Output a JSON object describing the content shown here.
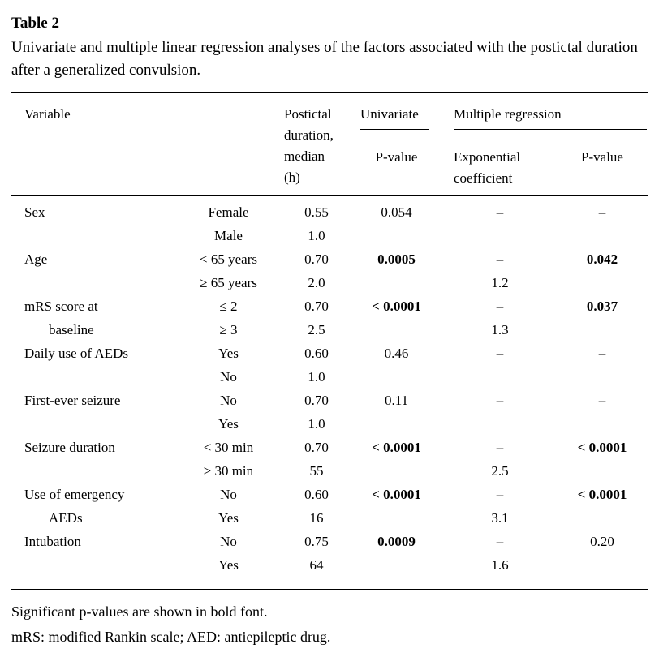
{
  "doc": {
    "title": "Table 2",
    "caption": "Univariate and multiple linear regression analyses of the factors associated with the postictal duration after a generalized convulsion."
  },
  "table": {
    "headers": {
      "variable": "Variable",
      "postictal": "Postictal duration, median (h)",
      "univariate": "Univariate",
      "multiple_regression": "Multiple regression",
      "univariate_p": "P-value",
      "exp_coef": "Exponential coefficient",
      "mr_p": "P-value"
    },
    "rows": [
      {
        "variable": "Sex",
        "indent": false,
        "category": "Female",
        "median": "0.55",
        "uni_p": "0.054",
        "uni_p_bold": false,
        "exp_coef": "–",
        "mr_p": "–",
        "mr_p_bold": false
      },
      {
        "variable": "",
        "indent": false,
        "category": "Male",
        "median": "1.0",
        "uni_p": "",
        "uni_p_bold": false,
        "exp_coef": "",
        "mr_p": "",
        "mr_p_bold": false
      },
      {
        "variable": "Age",
        "indent": false,
        "category": "< 65 years",
        "median": "0.70",
        "uni_p": "0.0005",
        "uni_p_bold": true,
        "exp_coef": "–",
        "mr_p": "0.042",
        "mr_p_bold": true
      },
      {
        "variable": "",
        "indent": false,
        "category": "≥ 65 years",
        "median": "2.0",
        "uni_p": "",
        "uni_p_bold": false,
        "exp_coef": "1.2",
        "mr_p": "",
        "mr_p_bold": false
      },
      {
        "variable": "mRS score at",
        "indent": false,
        "category": "≤ 2",
        "median": "0.70",
        "uni_p": "< 0.0001",
        "uni_p_bold": true,
        "exp_coef": "–",
        "mr_p": "0.037",
        "mr_p_bold": true
      },
      {
        "variable": "baseline",
        "indent": true,
        "category": "≥ 3",
        "median": "2.5",
        "uni_p": "",
        "uni_p_bold": false,
        "exp_coef": "1.3",
        "mr_p": "",
        "mr_p_bold": false
      },
      {
        "variable": "Daily use of AEDs",
        "indent": false,
        "category": "Yes",
        "median": "0.60",
        "uni_p": "0.46",
        "uni_p_bold": false,
        "exp_coef": "–",
        "mr_p": "–",
        "mr_p_bold": false
      },
      {
        "variable": "",
        "indent": false,
        "category": "No",
        "median": "1.0",
        "uni_p": "",
        "uni_p_bold": false,
        "exp_coef": "",
        "mr_p": "",
        "mr_p_bold": false
      },
      {
        "variable": "First-ever seizure",
        "indent": false,
        "category": "No",
        "median": "0.70",
        "uni_p": "0.11",
        "uni_p_bold": false,
        "exp_coef": "–",
        "mr_p": "–",
        "mr_p_bold": false
      },
      {
        "variable": "",
        "indent": false,
        "category": "Yes",
        "median": "1.0",
        "uni_p": "",
        "uni_p_bold": false,
        "exp_coef": "",
        "mr_p": "",
        "mr_p_bold": false
      },
      {
        "variable": "Seizure duration",
        "indent": false,
        "category": "< 30 min",
        "median": "0.70",
        "uni_p": "< 0.0001",
        "uni_p_bold": true,
        "exp_coef": "–",
        "mr_p": "< 0.0001",
        "mr_p_bold": true
      },
      {
        "variable": "",
        "indent": false,
        "category": "≥ 30 min",
        "median": "55",
        "uni_p": "",
        "uni_p_bold": false,
        "exp_coef": "2.5",
        "mr_p": "",
        "mr_p_bold": false
      },
      {
        "variable": "Use of emergency",
        "indent": false,
        "category": "No",
        "median": "0.60",
        "uni_p": "< 0.0001",
        "uni_p_bold": true,
        "exp_coef": "–",
        "mr_p": "< 0.0001",
        "mr_p_bold": true
      },
      {
        "variable": "AEDs",
        "indent": true,
        "category": "Yes",
        "median": "16",
        "uni_p": "",
        "uni_p_bold": false,
        "exp_coef": "3.1",
        "mr_p": "",
        "mr_p_bold": false
      },
      {
        "variable": "Intubation",
        "indent": false,
        "category": "No",
        "median": "0.75",
        "uni_p": "0.0009",
        "uni_p_bold": true,
        "exp_coef": "–",
        "mr_p": "0.20",
        "mr_p_bold": false
      },
      {
        "variable": "",
        "indent": false,
        "category": "Yes",
        "median": "64",
        "uni_p": "",
        "uni_p_bold": false,
        "exp_coef": "1.6",
        "mr_p": "",
        "mr_p_bold": false
      }
    ]
  },
  "footnotes": {
    "line1": "Significant p-values are shown in bold font.",
    "line2": "mRS: modified Rankin scale; AED: antiepileptic drug."
  }
}
